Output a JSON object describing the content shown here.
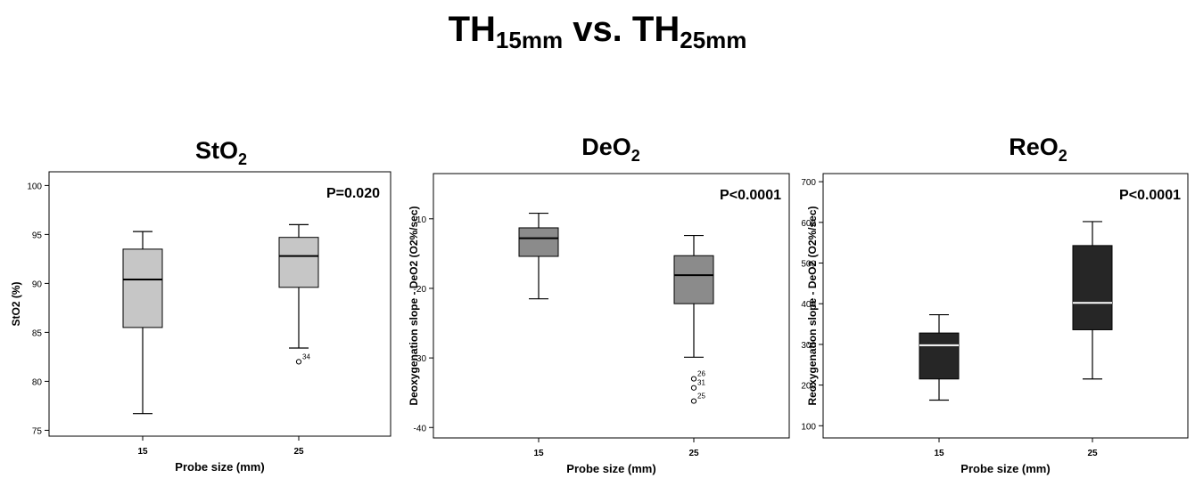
{
  "figure_title": {
    "base_a": "TH",
    "sub_a": "15mm",
    "middle": " vs. ",
    "base_b": "TH",
    "sub_b": "25mm"
  },
  "chart_data": [
    {
      "type": "box",
      "title_base": "StO",
      "title_sub": "2",
      "xlabel": "Probe size (mm)",
      "ylabel": "StO2 (%)",
      "categories": [
        "15",
        "25"
      ],
      "ylim": [
        74.4,
        101.4
      ],
      "yticks": [
        75,
        80,
        85,
        90,
        95,
        100
      ],
      "annotation": "P=0.020",
      "box_color": "#c6c6c6",
      "median_color": "#000000",
      "boxes": [
        {
          "category": "15",
          "whisker_low": 76.7,
          "q1": 85.5,
          "median": 90.4,
          "q3": 93.5,
          "whisker_high": 95.3,
          "outliers": []
        },
        {
          "category": "25",
          "whisker_low": 83.4,
          "q1": 89.6,
          "median": 92.8,
          "q3": 94.7,
          "whisker_high": 96.0,
          "outliers": [
            {
              "value": 82.0,
              "label": "34"
            }
          ]
        }
      ]
    },
    {
      "type": "box",
      "title_base": "DeO",
      "title_sub": "2",
      "xlabel": "Probe size (mm)",
      "ylabel": "Deoxygenation slope - DeO2 (O2%/sec)",
      "categories": [
        "15",
        "25"
      ],
      "ylim": [
        -41.5,
        -3.5
      ],
      "yticks": [
        -10,
        -20,
        -30,
        -40
      ],
      "annotation": "P<0.0001",
      "box_color": "#8b8b8b",
      "median_color": "#000000",
      "boxes": [
        {
          "category": "15",
          "whisker_low": -21.5,
          "q1": -15.4,
          "median": -12.8,
          "q3": -11.3,
          "whisker_high": -9.2,
          "outliers": []
        },
        {
          "category": "25",
          "whisker_low": -29.9,
          "q1": -22.2,
          "median": -18.1,
          "q3": -15.3,
          "whisker_high": -12.4,
          "outliers": [
            {
              "value": -33.0,
              "label": "26"
            },
            {
              "value": -34.3,
              "label": "31"
            },
            {
              "value": -36.2,
              "label": "25"
            }
          ]
        }
      ]
    },
    {
      "type": "box",
      "title_base": "ReO",
      "title_sub": "2",
      "xlabel": "Probe size (mm)",
      "ylabel": "Reoxygenation slope - DeO2 (O2%/sec)",
      "categories": [
        "15",
        "25"
      ],
      "ylim": [
        70,
        720
      ],
      "yticks": [
        100,
        200,
        300,
        400,
        500,
        600,
        700
      ],
      "annotation": "P<0.0001",
      "box_color": "#262626",
      "median_color": "#ffffff",
      "boxes": [
        {
          "category": "15",
          "whisker_low": 163,
          "q1": 215,
          "median": 298,
          "q3": 328,
          "whisker_high": 373,
          "outliers": []
        },
        {
          "category": "25",
          "whisker_low": 215,
          "q1": 336,
          "median": 402,
          "q3": 543,
          "whisker_high": 602,
          "outliers": []
        }
      ]
    }
  ]
}
